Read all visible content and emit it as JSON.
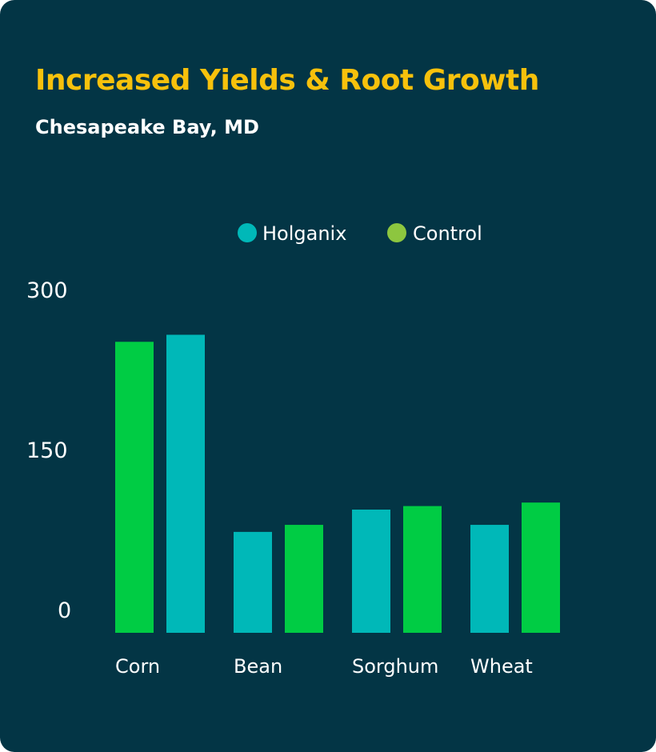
{
  "header": {
    "title": "Increased Yields & Root Growth",
    "subtitle": "Chesapeake Bay, MD"
  },
  "colors": {
    "background": "#033545",
    "title": "#f7c10c",
    "text": "#ffffff",
    "holganix": "#00b8b8",
    "control": "#00cc44",
    "legend_control_dot": "#8dc63f"
  },
  "chart_data": {
    "type": "bar",
    "categories": [
      "Corn",
      "Bean",
      "Sorghum",
      "Wheat"
    ],
    "legend": [
      "Holganix",
      "Control"
    ],
    "legend_position": "top",
    "bars": [
      [
        {
          "color": "#00cc44",
          "value": 248
        },
        {
          "color": "#00b8b8",
          "value": 254
        }
      ],
      [
        {
          "color": "#00b8b8",
          "value": 86
        },
        {
          "color": "#00cc44",
          "value": 92
        }
      ],
      [
        {
          "color": "#00b8b8",
          "value": 105
        },
        {
          "color": "#00cc44",
          "value": 108
        }
      ],
      [
        {
          "color": "#00b8b8",
          "value": 92
        },
        {
          "color": "#00cc44",
          "value": 111
        }
      ]
    ],
    "yticks": [
      "300",
      "150",
      "0"
    ],
    "ylim": [
      0,
      300
    ],
    "grid": false
  }
}
